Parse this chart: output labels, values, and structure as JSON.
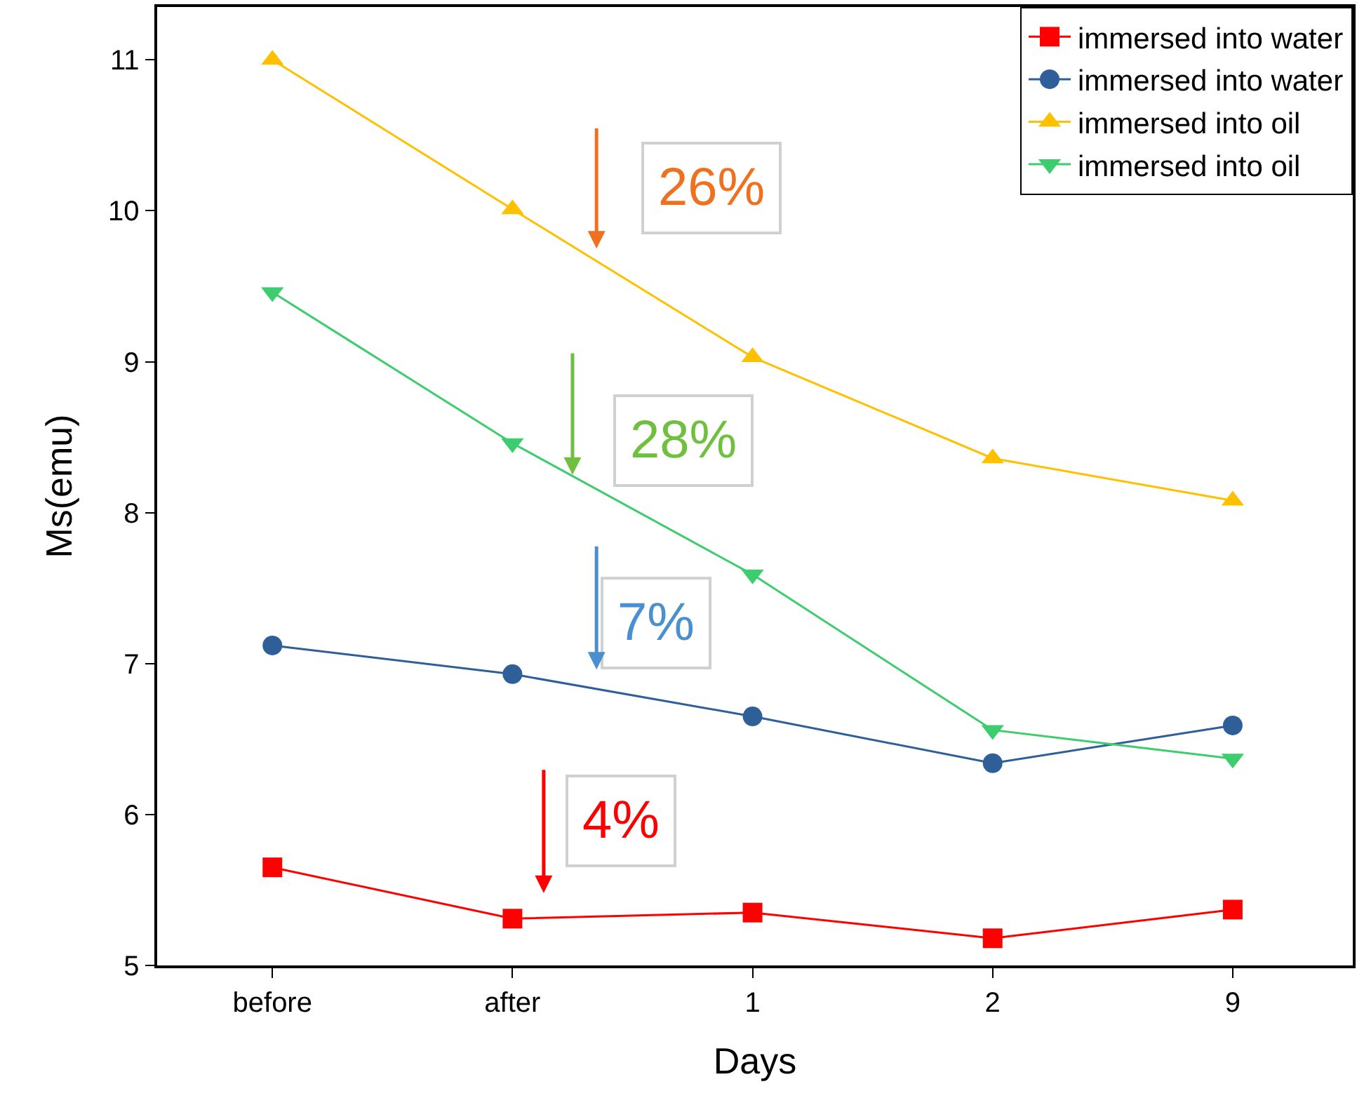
{
  "chart_data": {
    "type": "line",
    "xlabel": "Days",
    "ylabel": "Ms(emu)",
    "categories": [
      "before",
      "after",
      "1",
      "2",
      "9"
    ],
    "series": [
      {
        "name": "immersed into water",
        "color": "#ff0000",
        "marker": "square",
        "values": [
          5.65,
          5.31,
          5.35,
          5.18,
          5.37
        ]
      },
      {
        "name": "immersed into water",
        "color": "#2f5f98",
        "marker": "circle",
        "values": [
          7.12,
          6.93,
          6.65,
          6.34,
          6.59
        ]
      },
      {
        "name": "immersed into oil",
        "color": "#ffc000",
        "marker": "triangle",
        "values": [
          11.0,
          10.01,
          9.03,
          8.36,
          8.08
        ]
      },
      {
        "name": "immersed into oil",
        "color": "#3dcc6e",
        "marker": "triangle-down",
        "values": [
          9.46,
          8.46,
          7.59,
          6.56,
          6.37
        ]
      }
    ],
    "ylim": [
      5,
      11.35
    ],
    "yticks": [
      5,
      6,
      7,
      8,
      9,
      10,
      11
    ],
    "annotations": [
      "26%",
      "28%",
      "7%",
      "4%"
    ],
    "grid": false,
    "legend": "top right",
    "line_style": "solid"
  }
}
